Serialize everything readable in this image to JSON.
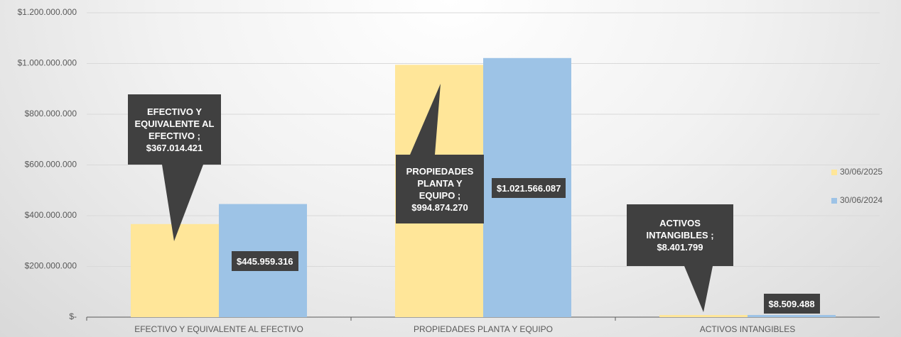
{
  "chart_data": {
    "type": "bar",
    "categories": [
      "EFECTIVO Y EQUIVALENTE AL EFECTIVO",
      "PROPIEDADES PLANTA Y EQUIPO",
      "ACTIVOS INTANGIBLES"
    ],
    "series": [
      {
        "name": "30/06/2025",
        "color": "#ffe699",
        "values": [
          367014421,
          994874270,
          8401799
        ],
        "value_labels": [
          "EFECTIVO Y EQUIVALENTE AL EFECTIVO ; $367.014.421",
          "PROPIEDADES PLANTA Y EQUIPO ; $994.874.270",
          "ACTIVOS INTANGIBLES ; $8.401.799"
        ]
      },
      {
        "name": "30/06/2024",
        "color": "#9dc3e6",
        "values": [
          445959316,
          1021566087,
          8509488
        ],
        "value_labels": [
          "$445.959.316",
          "$1.021.566.087",
          "$8.509.488"
        ]
      }
    ],
    "ylim": [
      0,
      1200000000
    ],
    "yticks": [
      {
        "value": 0,
        "label": "$-"
      },
      {
        "value": 200000000,
        "label": "$200.000.000"
      },
      {
        "value": 400000000,
        "label": "$400.000.000"
      },
      {
        "value": 600000000,
        "label": "$600.000.000"
      },
      {
        "value": 800000000,
        "label": "$800.000.000"
      },
      {
        "value": 1000000000,
        "label": "$1.000.000.000"
      },
      {
        "value": 1200000000,
        "label": "$1.200.000.000"
      }
    ],
    "grid": true,
    "legend": "right"
  }
}
